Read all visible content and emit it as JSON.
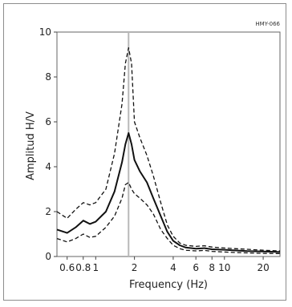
{
  "chart_data": {
    "type": "line",
    "x_scale": "log",
    "xlim": [
      0.5,
      27
    ],
    "ylim": [
      0,
      10
    ],
    "xlabel": "Frequency (Hz)",
    "ylabel": "Amplitud  H/V",
    "station_label": "HMY-066",
    "grid": false,
    "x_ticks": [
      {
        "value": 0.6,
        "label": "0.6"
      },
      {
        "value": 0.8,
        "label": "0.8"
      },
      {
        "value": 1,
        "label": "1"
      },
      {
        "value": 2,
        "label": "2"
      },
      {
        "value": 4,
        "label": "4"
      },
      {
        "value": 6,
        "label": "6"
      },
      {
        "value": 8,
        "label": "8"
      },
      {
        "value": 10,
        "label": "10"
      },
      {
        "value": 20,
        "label": "20"
      }
    ],
    "y_ticks": [
      {
        "value": 0,
        "label": "0"
      },
      {
        "value": 2,
        "label": "2"
      },
      {
        "value": 4,
        "label": "4"
      },
      {
        "value": 6,
        "label": "6"
      },
      {
        "value": 8,
        "label": "8"
      },
      {
        "value": 10,
        "label": "10"
      }
    ],
    "peak_frequency": 1.8,
    "series": [
      {
        "style": "solid",
        "x": [
          0.5,
          0.6,
          0.7,
          0.8,
          0.9,
          1.0,
          1.2,
          1.4,
          1.6,
          1.7,
          1.8,
          1.9,
          2.0,
          2.2,
          2.5,
          2.8,
          3.2,
          3.6,
          4.0,
          4.5,
          5.0,
          6.0,
          7.0,
          8.0,
          10,
          12,
          15,
          20,
          27
        ],
        "y": [
          1.2,
          1.05,
          1.3,
          1.6,
          1.45,
          1.55,
          2.0,
          2.9,
          4.2,
          5.0,
          5.5,
          5.0,
          4.3,
          3.8,
          3.3,
          2.6,
          1.8,
          1.1,
          0.7,
          0.5,
          0.4,
          0.35,
          0.37,
          0.32,
          0.3,
          0.27,
          0.24,
          0.22,
          0.2
        ]
      },
      {
        "style": "dashed",
        "x": [
          0.5,
          0.6,
          0.7,
          0.8,
          0.9,
          1.0,
          1.2,
          1.4,
          1.6,
          1.7,
          1.8,
          1.9,
          2.0,
          2.2,
          2.5,
          2.8,
          3.2,
          3.6,
          4.0,
          4.5,
          5.0,
          6.0,
          7.0,
          8.0,
          10,
          12,
          15,
          20,
          27
        ],
        "y": [
          2.0,
          1.7,
          2.1,
          2.4,
          2.3,
          2.4,
          3.0,
          4.6,
          6.8,
          8.6,
          9.3,
          8.6,
          6.0,
          5.3,
          4.5,
          3.6,
          2.4,
          1.4,
          0.9,
          0.6,
          0.5,
          0.45,
          0.48,
          0.42,
          0.38,
          0.35,
          0.32,
          0.28,
          0.25
        ]
      },
      {
        "style": "dashed",
        "x": [
          0.5,
          0.6,
          0.7,
          0.8,
          0.9,
          1.0,
          1.2,
          1.4,
          1.6,
          1.7,
          1.8,
          1.9,
          2.0,
          2.2,
          2.5,
          2.8,
          3.2,
          3.6,
          4.0,
          4.5,
          5.0,
          6.0,
          7.0,
          8.0,
          10,
          12,
          15,
          20,
          27
        ],
        "y": [
          0.8,
          0.65,
          0.8,
          1.0,
          0.85,
          0.9,
          1.3,
          1.8,
          2.6,
          3.2,
          3.3,
          3.0,
          2.8,
          2.6,
          2.3,
          1.9,
          1.2,
          0.8,
          0.5,
          0.35,
          0.28,
          0.25,
          0.27,
          0.23,
          0.2,
          0.18,
          0.16,
          0.14,
          0.13
        ]
      }
    ]
  }
}
